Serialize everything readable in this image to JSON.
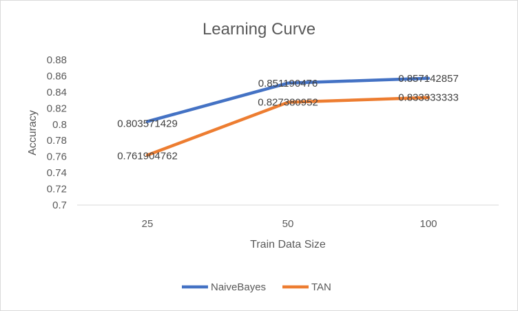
{
  "chart_data": {
    "type": "line",
    "title": "Learning Curve",
    "xlabel": "Train Data Size",
    "ylabel": "Accuracy",
    "categories": [
      "25",
      "50",
      "100"
    ],
    "ylim": [
      0.7,
      0.88
    ],
    "ytick_step": 0.02,
    "yticks": [
      "0.7",
      "0.72",
      "0.74",
      "0.76",
      "0.78",
      "0.8",
      "0.82",
      "0.84",
      "0.86",
      "0.88"
    ],
    "grid": false,
    "legend_position": "bottom",
    "series": [
      {
        "name": "NaiveBayes",
        "color": "#4472c4",
        "values": [
          0.803571429,
          0.851190476,
          0.857142857
        ],
        "labels": [
          "0.803571429",
          "0.851190476",
          "0.857142857"
        ]
      },
      {
        "name": "TAN",
        "color": "#ed7d31",
        "values": [
          0.761904762,
          0.827380952,
          0.833333333
        ],
        "labels": [
          "0.761904762",
          "0.827380952",
          "0.833333333"
        ]
      }
    ]
  }
}
